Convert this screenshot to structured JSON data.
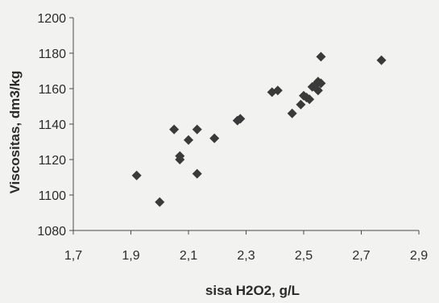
{
  "chart_data": {
    "type": "scatter",
    "xlabel": "sisa H2O2, g/L",
    "ylabel": "Viscositas, dm3/kg",
    "xlim": [
      1.7,
      2.9
    ],
    "ylim": [
      1080,
      1200
    ],
    "xticks": [
      1.7,
      1.9,
      2.1,
      2.3,
      2.5,
      2.7,
      2.9
    ],
    "xtick_labels": [
      "1,7",
      "1,9",
      "2,1",
      "2,3",
      "2,5",
      "2,7",
      "2,9"
    ],
    "yticks": [
      1080,
      1100,
      1120,
      1140,
      1160,
      1180,
      1200
    ],
    "ytick_labels": [
      "1080",
      "1100",
      "1120",
      "1140",
      "1160",
      "1180",
      "1200"
    ],
    "grid": false,
    "marker": "diamond",
    "marker_color": "#3a3a3a",
    "x": [
      1.92,
      2.0,
      2.05,
      2.07,
      2.07,
      2.1,
      2.13,
      2.13,
      2.19,
      2.27,
      2.28,
      2.39,
      2.41,
      2.46,
      2.49,
      2.5,
      2.51,
      2.52,
      2.53,
      2.54,
      2.55,
      2.55,
      2.56,
      2.56,
      2.77
    ],
    "y": [
      1111,
      1096,
      1137,
      1122,
      1120,
      1131,
      1137,
      1112,
      1132,
      1142,
      1143,
      1158,
      1159,
      1146,
      1151,
      1156,
      1155,
      1154,
      1161,
      1162,
      1159,
      1164,
      1163,
      1178,
      1176
    ]
  }
}
